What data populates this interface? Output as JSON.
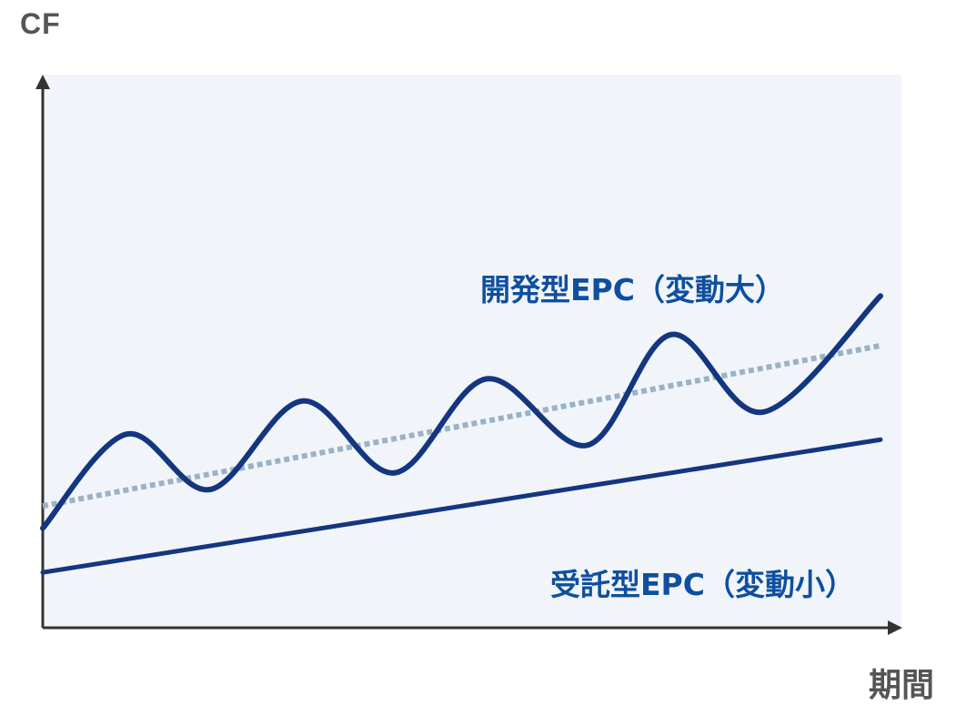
{
  "chart_data": {
    "type": "line",
    "ylabel": "CF",
    "xlabel": "期間",
    "grid": false,
    "colors": {
      "plot_background": "#f1f5f9",
      "axis": "#333333",
      "primary_series": "#14367f",
      "trend_line": "#9bb2c6",
      "label_text": "#0f4f9f"
    },
    "series": [
      {
        "name": "開発型EPC（変動大）",
        "style": "solid-wavy",
        "points": [
          [
            0.0,
            0.18
          ],
          [
            0.1,
            0.35
          ],
          [
            0.2,
            0.25
          ],
          [
            0.31,
            0.41
          ],
          [
            0.42,
            0.28
          ],
          [
            0.53,
            0.45
          ],
          [
            0.65,
            0.33
          ],
          [
            0.75,
            0.53
          ],
          [
            0.86,
            0.39
          ],
          [
            1.0,
            0.6
          ]
        ]
      },
      {
        "name": "trend",
        "style": "dotted",
        "points": [
          [
            0.0,
            0.22
          ],
          [
            1.0,
            0.51
          ]
        ]
      },
      {
        "name": "受託型EPC（変動小）",
        "style": "solid-straight",
        "points": [
          [
            0.0,
            0.1
          ],
          [
            1.0,
            0.34
          ]
        ]
      }
    ]
  }
}
